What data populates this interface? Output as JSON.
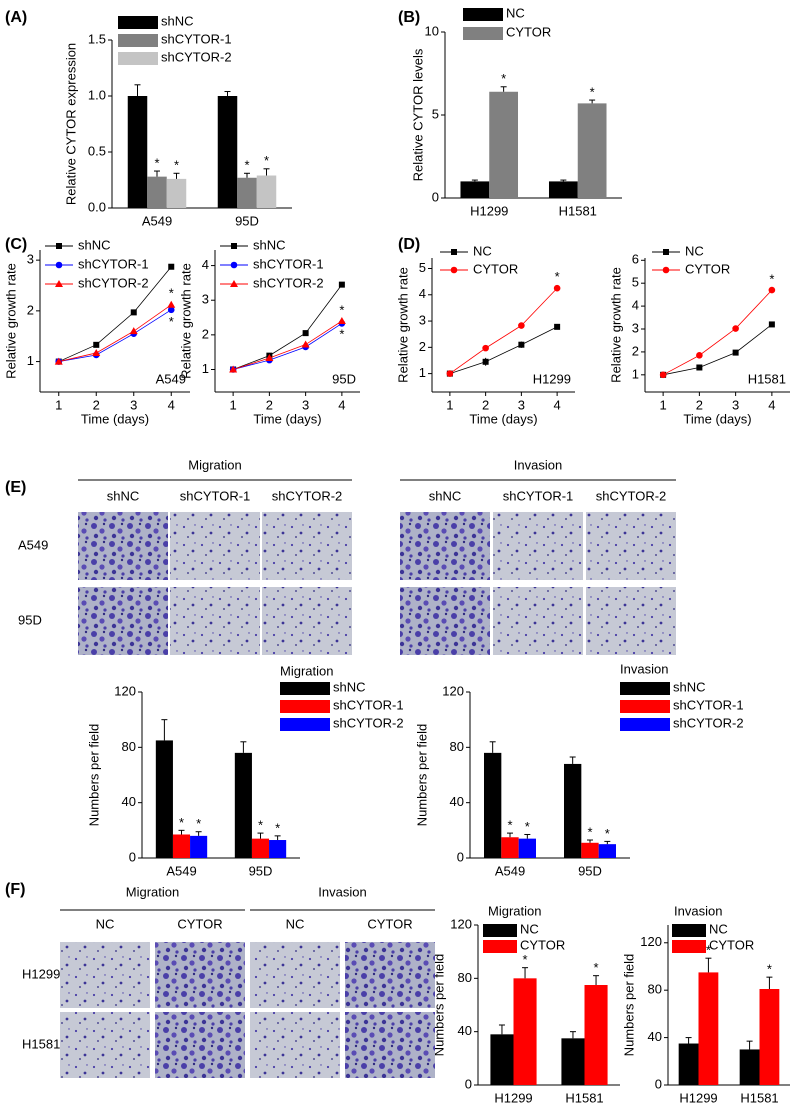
{
  "chart_data": [
    {
      "panel": "(A)",
      "type": "bar",
      "y_label": "Relative CYTOR expression",
      "categories": [
        "A549",
        "95D"
      ],
      "series": [
        {
          "name": "shNC",
          "color": "#000000",
          "values": [
            1,
            1
          ],
          "errors": [
            0.1,
            0.04
          ]
        },
        {
          "name": "shCYTOR-1",
          "color": "#808080",
          "values": [
            0.28,
            0.27
          ],
          "errors": [
            0.05,
            0.04
          ]
        },
        {
          "name": "shCYTOR-2",
          "color": "#c4c4c4",
          "values": [
            0.26,
            0.29
          ],
          "errors": [
            0.05,
            0.06
          ]
        }
      ],
      "ylim": [
        0,
        1.5
      ],
      "yticks": [
        {
          "value": 0,
          "label": "0.0"
        },
        0.5,
        {
          "value": 1,
          "label": "1.0"
        },
        1.5
      ],
      "annotations": [
        {
          "text": "*",
          "series": 1,
          "index": 0
        },
        {
          "text": "*",
          "series": 2,
          "index": 0
        },
        {
          "text": "*",
          "series": 1,
          "index": 1
        },
        {
          "text": "*",
          "series": 2,
          "index": 1
        }
      ]
    },
    {
      "panel": "(B)",
      "type": "bar",
      "y_label": "Relative CYTOR levels",
      "categories": [
        "H1299",
        "H1581"
      ],
      "series": [
        {
          "name": "NC",
          "color": "#000000",
          "values": [
            1,
            1
          ],
          "errors": [
            0.08,
            0.08
          ]
        },
        {
          "name": "CYTOR",
          "color": "#808080",
          "values": [
            6.4,
            5.7
          ],
          "errors": [
            0.3,
            0.2
          ]
        }
      ],
      "ylim": [
        0,
        10
      ],
      "yticks": [
        0,
        5,
        10
      ],
      "annotations": [
        {
          "text": "*",
          "series": 1,
          "index": 0
        },
        {
          "text": "*",
          "series": 1,
          "index": 1
        }
      ]
    },
    {
      "panel": "(C)",
      "type": "line",
      "x_label": "Time (days)",
      "y_label": "Relative growth rate",
      "inset_label": "A549",
      "x": [
        1,
        2,
        3,
        4
      ],
      "xlim": [
        0.5,
        4.5
      ],
      "xticks": [
        1,
        2,
        3,
        4
      ],
      "ylim": [
        0.4,
        3.2
      ],
      "yticks": [
        1,
        2,
        3
      ],
      "series": [
        {
          "name": "shNC",
          "color": "#000000",
          "marker": "square",
          "values": [
            1,
            1.33,
            1.97,
            2.87
          ],
          "errors": [
            0.03,
            0.03,
            0.05,
            0.05
          ]
        },
        {
          "name": "shCYTOR-1",
          "color": "#0000ff",
          "marker": "circle",
          "values": [
            1,
            1.13,
            1.55,
            2.02
          ],
          "errors": [
            0.03,
            0.03,
            0.04,
            0.05
          ]
        },
        {
          "name": "shCYTOR-2",
          "color": "#ff0000",
          "marker": "triangle",
          "values": [
            1,
            1.17,
            1.6,
            2.12
          ],
          "errors": [
            0.03,
            0.03,
            0.04,
            0.05
          ]
        }
      ],
      "annotations": [
        {
          "text": "*",
          "series": 2,
          "index": 3,
          "side": "above"
        },
        {
          "text": "*",
          "series": 1,
          "index": 3,
          "side": "below"
        }
      ]
    },
    {
      "type": "line",
      "x_label": "Time (days)",
      "y_label": "Relative growth rate",
      "inset_label": "95D",
      "x": [
        1,
        2,
        3,
        4
      ],
      "xlim": [
        0.5,
        4.5
      ],
      "xticks": [
        1,
        2,
        3,
        4
      ],
      "ylim": [
        0.35,
        4.45
      ],
      "yticks": [
        1,
        2,
        3,
        4
      ],
      "series": [
        {
          "name": "shNC",
          "color": "#000000",
          "marker": "square",
          "values": [
            1,
            1.4,
            2.05,
            3.45
          ],
          "errors": [
            0.03,
            0.03,
            0.05,
            0.06
          ]
        },
        {
          "name": "shCYTOR-1",
          "color": "#0000ff",
          "marker": "circle",
          "values": [
            1,
            1.27,
            1.65,
            2.33
          ],
          "errors": [
            0.03,
            0.03,
            0.04,
            0.05
          ]
        },
        {
          "name": "shCYTOR-2",
          "color": "#ff0000",
          "marker": "triangle",
          "values": [
            1,
            1.33,
            1.72,
            2.4
          ],
          "errors": [
            0.03,
            0.03,
            0.04,
            0.05
          ]
        }
      ],
      "annotations": [
        {
          "text": "*",
          "series": 2,
          "index": 3,
          "side": "above"
        },
        {
          "text": "*",
          "series": 1,
          "index": 3,
          "side": "below"
        }
      ]
    },
    {
      "panel": "(D)",
      "type": "line",
      "x_label": "Time (days)",
      "y_label": "Relative growth rate",
      "inset_label": "H1299",
      "x": [
        1,
        2,
        3,
        4
      ],
      "xlim": [
        0.5,
        4.5
      ],
      "xticks": [
        1,
        2,
        3,
        4
      ],
      "ylim": [
        0.3,
        5.4
      ],
      "yticks": [
        1,
        2,
        3,
        4,
        5
      ],
      "series": [
        {
          "name": "NC",
          "color": "#000000",
          "marker": "square",
          "values": [
            1,
            1.45,
            2.1,
            2.78
          ],
          "errors": [
            0.04,
            0.15,
            0.12,
            0.1
          ]
        },
        {
          "name": "CYTOR",
          "color": "#ff0000",
          "marker": "circle",
          "values": [
            1,
            1.97,
            2.83,
            4.25
          ],
          "errors": [
            0.04,
            0.1,
            0.1,
            0.1
          ]
        }
      ],
      "annotations": [
        {
          "text": "*",
          "series": 1,
          "index": 3,
          "side": "above"
        }
      ]
    },
    {
      "type": "line",
      "x_label": "Time (days)",
      "y_label": "Relative growth rate",
      "inset_label": "H1581",
      "x": [
        1,
        2,
        3,
        4
      ],
      "xlim": [
        0.5,
        4.5
      ],
      "xticks": [
        1,
        2,
        3,
        4
      ],
      "ylim": [
        0.25,
        6.1
      ],
      "yticks": [
        1,
        2,
        3,
        4,
        5,
        6
      ],
      "series": [
        {
          "name": "NC",
          "color": "#000000",
          "marker": "square",
          "values": [
            1,
            1.32,
            1.97,
            3.2
          ],
          "errors": [
            0.03,
            0.06,
            0.06,
            0.08
          ]
        },
        {
          "name": "CYTOR",
          "color": "#ff0000",
          "marker": "circle",
          "values": [
            1,
            1.85,
            3.02,
            4.7
          ],
          "errors": [
            0.03,
            0.05,
            0.06,
            0.08
          ]
        }
      ],
      "annotations": [
        {
          "text": "*",
          "series": 1,
          "index": 3,
          "side": "above"
        }
      ]
    },
    {
      "type": "bar",
      "y_label": "Numbers per field",
      "legend_title": "Migration",
      "categories": [
        "A549",
        "95D"
      ],
      "series": [
        {
          "name": "shNC",
          "color": "#000000",
          "values": [
            85,
            76
          ],
          "errors": [
            15,
            8
          ]
        },
        {
          "name": "shCYTOR-1",
          "color": "#ff0000",
          "values": [
            17,
            14
          ],
          "errors": [
            3,
            4
          ]
        },
        {
          "name": "shCYTOR-2",
          "color": "#0000ff",
          "values": [
            16,
            13
          ],
          "errors": [
            3,
            3
          ]
        }
      ],
      "ylim": [
        0,
        120
      ],
      "yticks": [
        0,
        40,
        80,
        120
      ],
      "annotations": [
        {
          "text": "*",
          "series": 1,
          "index": 0
        },
        {
          "text": "*",
          "series": 2,
          "index": 0
        },
        {
          "text": "*",
          "series": 1,
          "index": 1
        },
        {
          "text": "*",
          "series": 2,
          "index": 1
        }
      ]
    },
    {
      "type": "bar",
      "y_label": "Numbers per field",
      "legend_title": "Invasion",
      "categories": [
        "A549",
        "95D"
      ],
      "series": [
        {
          "name": "shNC",
          "color": "#000000",
          "values": [
            76,
            68
          ],
          "errors": [
            8,
            5
          ]
        },
        {
          "name": "shCYTOR-1",
          "color": "#ff0000",
          "values": [
            15,
            11
          ],
          "errors": [
            3,
            2
          ]
        },
        {
          "name": "shCYTOR-2",
          "color": "#0000ff",
          "values": [
            14,
            10
          ],
          "errors": [
            3,
            2
          ]
        }
      ],
      "ylim": [
        0,
        120
      ],
      "yticks": [
        0,
        40,
        80,
        120
      ],
      "annotations": [
        {
          "text": "*",
          "series": 1,
          "index": 0
        },
        {
          "text": "*",
          "series": 2,
          "index": 0
        },
        {
          "text": "*",
          "series": 1,
          "index": 1
        },
        {
          "text": "*",
          "series": 2,
          "index": 1
        }
      ]
    },
    {
      "type": "bar",
      "y_label": "Numbers per field",
      "legend_title": "Migration",
      "categories": [
        "H1299",
        "H1581"
      ],
      "series": [
        {
          "name": "NC",
          "color": "#000000",
          "values": [
            38,
            35
          ],
          "errors": [
            7,
            5
          ]
        },
        {
          "name": "CYTOR",
          "color": "#ff0000",
          "values": [
            80,
            75
          ],
          "errors": [
            8,
            7
          ]
        }
      ],
      "ylim": [
        0,
        120
      ],
      "yticks": [
        0,
        40,
        80,
        120
      ],
      "annotations": [
        {
          "text": "*",
          "series": 1,
          "index": 0
        },
        {
          "text": "*",
          "series": 1,
          "index": 1
        }
      ]
    },
    {
      "type": "bar",
      "y_label": "Numbers per field",
      "legend_title": "Invasion",
      "categories": [
        "H1299",
        "H1581"
      ],
      "series": [
        {
          "name": "NC",
          "color": "#000000",
          "values": [
            35,
            30
          ],
          "errors": [
            5,
            7
          ]
        },
        {
          "name": "CYTOR",
          "color": "#ff0000",
          "values": [
            95,
            81
          ],
          "errors": [
            12,
            10
          ]
        }
      ],
      "ylim": [
        0,
        135
      ],
      "yticks": [
        0,
        40,
        80,
        120
      ],
      "annotations": [
        {
          "text": "*",
          "series": 1,
          "index": 0
        },
        {
          "text": "*",
          "series": 1,
          "index": 1
        }
      ]
    }
  ],
  "image_panels": [
    {
      "panel": "(E)",
      "groups": [
        {
          "title": "Migration",
          "columns": [
            "shNC",
            "shCYTOR-1",
            "shCYTOR-2"
          ]
        },
        {
          "title": "Invasion",
          "columns": [
            "shNC",
            "shCYTOR-1",
            "shCYTOR-2"
          ]
        }
      ],
      "rows": [
        "A549",
        "95D"
      ]
    },
    {
      "panel": "(F)",
      "groups": [
        {
          "title": "Migration",
          "columns": [
            "NC",
            "CYTOR"
          ]
        },
        {
          "title": "Invasion",
          "columns": [
            "NC",
            "CYTOR"
          ]
        }
      ],
      "rows": [
        "H1299",
        "H1581"
      ]
    }
  ]
}
